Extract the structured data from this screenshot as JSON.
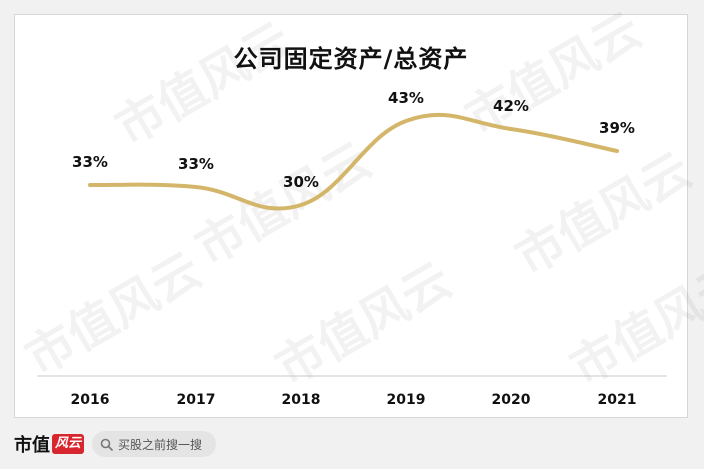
{
  "chart_data": {
    "type": "line",
    "title": "公司固定资产/总资产",
    "categories": [
      "2016",
      "2017",
      "2018",
      "2019",
      "2020",
      "2021"
    ],
    "values": [
      33,
      33,
      30,
      43,
      42,
      39
    ],
    "data_labels": [
      "33%",
      "33%",
      "30%",
      "43%",
      "42%",
      "39%"
    ],
    "series_color": "#d4b66a",
    "grid": false,
    "legend": "none"
  },
  "watermark": "市值风云",
  "footer": {
    "brand_text": "市值",
    "brand_logo_text": "风云",
    "search_placeholder": "买股之前搜一搜",
    "search_icon": "search-icon"
  }
}
